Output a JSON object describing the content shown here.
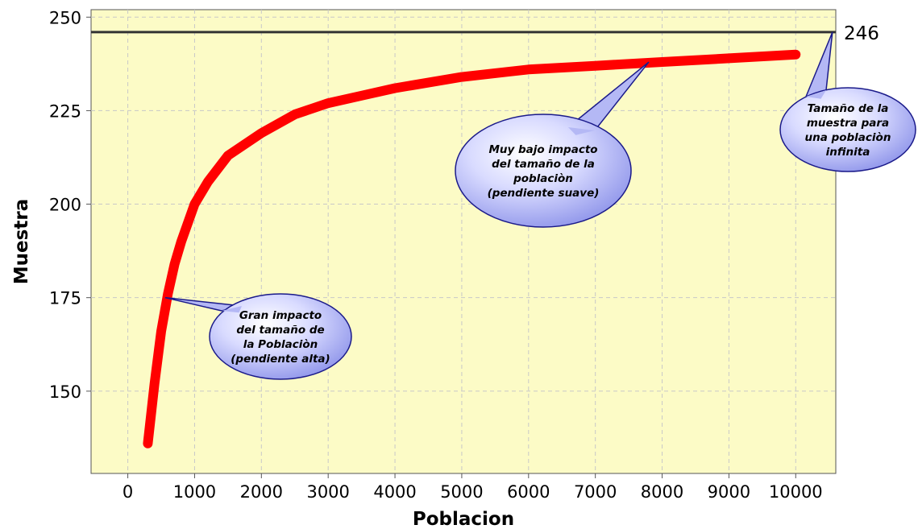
{
  "chart_data": {
    "type": "line",
    "title": "",
    "xlabel": "Poblacion",
    "ylabel": "Muestra",
    "xlim": [
      -550,
      10600
    ],
    "ylim": [
      128,
      252
    ],
    "x_ticks": [
      "0",
      "1000",
      "2000",
      "3000",
      "4000",
      "5000",
      "6000",
      "7000",
      "8000",
      "9000",
      "10000"
    ],
    "y_ticks": [
      "150",
      "175",
      "200",
      "225",
      "250"
    ],
    "grid": true,
    "series": [
      {
        "color": "#ff0000",
        "x": [
          300,
          400,
          500,
          600,
          700,
          800,
          1000,
          1200,
          1500,
          2000,
          2500,
          3000,
          3500,
          4000,
          5000,
          6000,
          7000,
          8000,
          9000,
          10000
        ],
        "y": [
          136,
          152,
          166,
          176,
          184,
          190,
          200,
          206,
          213,
          219,
          224,
          227,
          229,
          231,
          234,
          236,
          237,
          238,
          239,
          240
        ]
      }
    ],
    "reference_line": {
      "y": 246,
      "label": "246",
      "color": "#333333"
    },
    "annotations": [
      {
        "id": "callout-high",
        "lines": [
          "Gran impacto",
          "del tamaño de",
          "la Poblaciòn",
          "(pendiente alta)"
        ],
        "points_to": [
          560,
          175
        ]
      },
      {
        "id": "callout-low",
        "lines": [
          "Muy bajo impacto",
          "del tamaño de la",
          "poblaciòn",
          "(pendiente suave)"
        ],
        "points_to": [
          7800,
          238
        ]
      },
      {
        "id": "callout-infinite",
        "lines": [
          "Tamaño de la",
          "muestra para",
          "una poblaciòn",
          "infinita"
        ],
        "points_to": [
          10550,
          246
        ]
      }
    ],
    "colors": {
      "plot_background": "#fcfbc6",
      "grid": "#c8c8c8",
      "callout_fill": "#b4b8f5",
      "callout_stroke": "#1a1a8a"
    }
  }
}
